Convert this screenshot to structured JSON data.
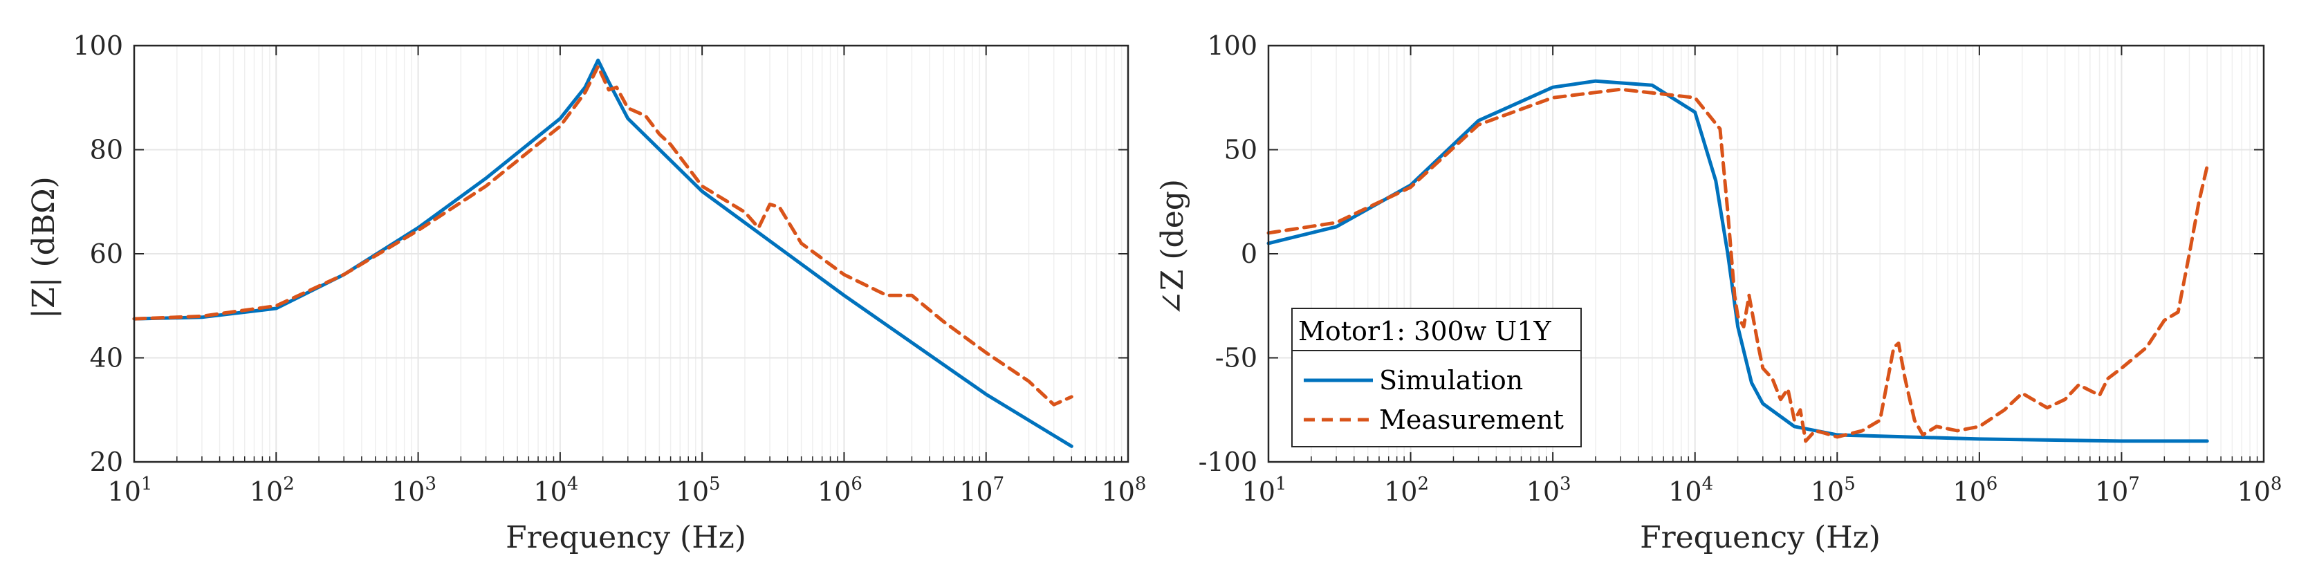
{
  "colors": {
    "simulation": "#0072BD",
    "measurement": "#D95319",
    "axes": "#262626",
    "grid": "#E6E6E6"
  },
  "chart_data": [
    {
      "type": "line",
      "xscale": "log",
      "xlim": [
        10,
        100000000
      ],
      "ylim": [
        20,
        100
      ],
      "xlabel": "Frequency (Hz)",
      "ylabel": "|Z| (dBΩ)",
      "xtick_labels": [
        {
          "base": "10",
          "exp": "1"
        },
        {
          "base": "10",
          "exp": "2"
        },
        {
          "base": "10",
          "exp": "3"
        },
        {
          "base": "10",
          "exp": "4"
        },
        {
          "base": "10",
          "exp": "5"
        },
        {
          "base": "10",
          "exp": "6"
        },
        {
          "base": "10",
          "exp": "7"
        },
        {
          "base": "10",
          "exp": "8"
        }
      ],
      "yticks": [
        "20",
        "40",
        "60",
        "80",
        "100"
      ],
      "grid": true,
      "series": [
        {
          "name": "Simulation",
          "style": "solid",
          "x": [
            10,
            30,
            100,
            300,
            1000,
            3000,
            10000,
            15000,
            18500,
            22000,
            30000,
            100000,
            1000000,
            10000000,
            40000000
          ],
          "y": [
            47.5,
            47.8,
            49.5,
            56,
            65,
            74.5,
            86,
            92,
            97.2,
            93,
            86,
            72,
            52,
            33,
            23
          ]
        },
        {
          "name": "Measurement",
          "style": "dashed",
          "x": [
            10,
            30,
            100,
            300,
            1000,
            3000,
            10000,
            15000,
            18500,
            22000,
            25000,
            30000,
            40000,
            50000,
            60000,
            100000,
            200000,
            250000,
            300000,
            350000,
            500000,
            1000000,
            2000000,
            3000000,
            5000000,
            10000000,
            20000000,
            30000000,
            40000000
          ],
          "y": [
            47.5,
            48,
            50,
            56,
            64.5,
            73,
            84.5,
            91,
            96,
            91.5,
            92,
            88,
            86.5,
            83,
            81,
            73,
            68,
            65,
            69.5,
            69,
            62,
            56,
            52,
            52,
            47,
            41,
            35.5,
            31,
            32.5
          ]
        }
      ]
    },
    {
      "type": "line",
      "xscale": "log",
      "xlim": [
        10,
        100000000
      ],
      "ylim": [
        -100,
        100
      ],
      "xlabel": "Frequency (Hz)",
      "ylabel": "∠Z (deg)",
      "xtick_labels": [
        {
          "base": "10",
          "exp": "1"
        },
        {
          "base": "10",
          "exp": "2"
        },
        {
          "base": "10",
          "exp": "3"
        },
        {
          "base": "10",
          "exp": "4"
        },
        {
          "base": "10",
          "exp": "5"
        },
        {
          "base": "10",
          "exp": "6"
        },
        {
          "base": "10",
          "exp": "7"
        },
        {
          "base": "10",
          "exp": "8"
        }
      ],
      "yticks": [
        "-100",
        "-50",
        "0",
        "50",
        "100"
      ],
      "grid": true,
      "legend": {
        "title": "Motor1: 300w U1Y",
        "position": "bottom-left",
        "entries": [
          "Simulation",
          "Measurement"
        ]
      },
      "series": [
        {
          "name": "Simulation",
          "style": "solid",
          "x": [
            10,
            30,
            100,
            300,
            1000,
            2000,
            5000,
            10000,
            14000,
            17000,
            20000,
            25000,
            30000,
            50000,
            100000,
            1000000,
            10000000,
            40000000
          ],
          "y": [
            5,
            13,
            33,
            64,
            80,
            83,
            81,
            68,
            35,
            0,
            -35,
            -62,
            -72,
            -83,
            -87,
            -89,
            -90,
            -90
          ]
        },
        {
          "name": "Measurement",
          "style": "dashed",
          "x": [
            10,
            30,
            100,
            300,
            1000,
            3000,
            10000,
            15000,
            17000,
            19000,
            20000,
            22000,
            24000,
            28000,
            30000,
            35000,
            40000,
            45000,
            50000,
            55000,
            60000,
            70000,
            80000,
            100000,
            150000,
            200000,
            250000,
            270000,
            300000,
            350000,
            400000,
            500000,
            700000,
            1000000,
            1500000,
            2000000,
            3000000,
            4000000,
            5000000,
            7000000,
            8000000,
            10000000,
            15000000,
            20000000,
            25000000,
            30000000,
            35000000,
            40000000
          ],
          "y": [
            10,
            15,
            32,
            62,
            75,
            79,
            75,
            60,
            20,
            -20,
            -30,
            -35,
            -20,
            -45,
            -55,
            -60,
            -70,
            -65,
            -80,
            -75,
            -90,
            -85,
            -86,
            -88,
            -85,
            -80,
            -45,
            -43,
            -60,
            -80,
            -87,
            -83,
            -85,
            -83,
            -75,
            -67,
            -74,
            -70,
            -63,
            -68,
            -60,
            -55,
            -45,
            -32,
            -28,
            0,
            25,
            42
          ]
        }
      ]
    }
  ]
}
